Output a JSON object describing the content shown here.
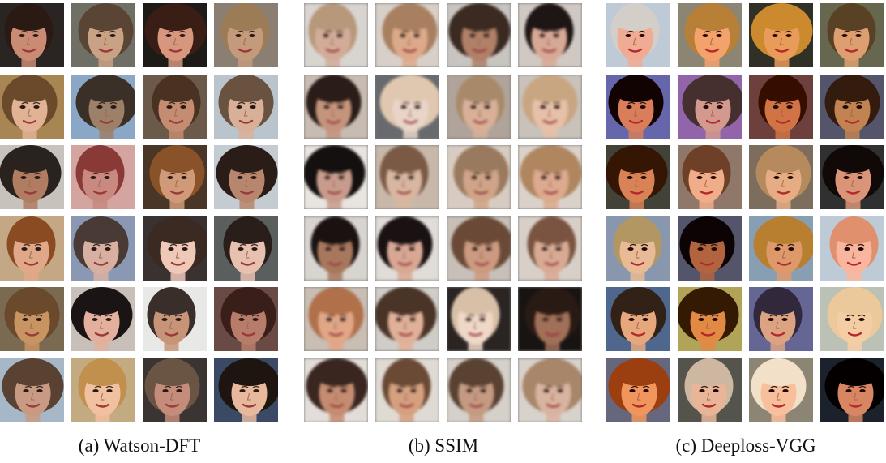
{
  "panels": [
    {
      "id": "watson-dft",
      "caption": "(a) Watson-DFT",
      "style": "sharp",
      "rows": 6,
      "cols": 4,
      "tiles": [
        {
          "bg": "#2a2422",
          "skin": "#c98b74",
          "hair": "#2b1a14"
        },
        {
          "bg": "#6f6f66",
          "skin": "#c9a184",
          "hair": "#5a4434"
        },
        {
          "bg": "#1e1a18",
          "skin": "#d6977e",
          "hair": "#3a1e16"
        },
        {
          "bg": "#8b7f74",
          "skin": "#c49a7c",
          "hair": "#9c7c56"
        },
        {
          "bg": "#a88654",
          "skin": "#e2b295",
          "hair": "#6b4a2c"
        },
        {
          "bg": "#8aa8c6",
          "skin": "#9c8068",
          "hair": "#3a3028"
        },
        {
          "bg": "#6b5a4a",
          "skin": "#c48c70",
          "hair": "#4a3222"
        },
        {
          "bg": "#b9c4cc",
          "skin": "#d8b098",
          "hair": "#6a5240"
        },
        {
          "bg": "#c8c2bc",
          "skin": "#b07c62",
          "hair": "#2a221e"
        },
        {
          "bg": "#d4a4a0",
          "skin": "#c88a80",
          "hair": "#8a3a36"
        },
        {
          "bg": "#4a3626",
          "skin": "#d09a78",
          "hair": "#8a5228"
        },
        {
          "bg": "#c4ccd2",
          "skin": "#b8866c",
          "hair": "#2a1c16"
        },
        {
          "bg": "#c4a886",
          "skin": "#e0a888",
          "hair": "#8a4a22"
        },
        {
          "bg": "#8a98b4",
          "skin": "#d8b0a2",
          "hair": "#4a3a36"
        },
        {
          "bg": "#3a3230",
          "skin": "#f0c8b8",
          "hair": "#3a2a22"
        },
        {
          "bg": "#5a5e5c",
          "skin": "#e8c0b0",
          "hair": "#2a1e1a"
        },
        {
          "bg": "#7a6a52",
          "skin": "#c89462",
          "hair": "#6a4a2a"
        },
        {
          "bg": "#c8c0b8",
          "skin": "#e2b09c",
          "hair": "#1a1414"
        },
        {
          "bg": "#e8e8e6",
          "skin": "#c89478",
          "hair": "#3a2e2a"
        },
        {
          "bg": "#6a4a44",
          "skin": "#b87c6a",
          "hair": "#3a1e1a"
        },
        {
          "bg": "#a6b8c8",
          "skin": "#c89a84",
          "hair": "#5a4232"
        },
        {
          "bg": "#c4aa80",
          "skin": "#f0c0a0",
          "hair": "#c0904c"
        },
        {
          "bg": "#3a3432",
          "skin": "#c48c7a",
          "hair": "#6a5444"
        },
        {
          "bg": "#3a4a64",
          "skin": "#e8b89c",
          "hair": "#1e1410"
        }
      ]
    },
    {
      "id": "ssim",
      "caption": "(b) SSIM",
      "style": "blurred",
      "rows": 6,
      "cols": 4,
      "tiles": [
        {
          "bg": "#d8d4d0",
          "skin": "#d2ac98",
          "hair": "#b8987a"
        },
        {
          "bg": "#d8d0c8",
          "skin": "#dcaa8a",
          "hair": "#a88060"
        },
        {
          "bg": "#c8c4c0",
          "skin": "#b08068",
          "hair": "#3a2a22"
        },
        {
          "bg": "#d0c8c2",
          "skin": "#d8a896",
          "hair": "#1e1614"
        },
        {
          "bg": "#c8bcb2",
          "skin": "#c4947c",
          "hair": "#2a1c18"
        },
        {
          "bg": "#686a6e",
          "skin": "#e8d4c8",
          "hair": "#e0c8b0"
        },
        {
          "bg": "#b0a49a",
          "skin": "#d8b098",
          "hair": "#a88a6a"
        },
        {
          "bg": "#c8c2ba",
          "skin": "#e6c0a8",
          "hair": "#c8a682"
        },
        {
          "bg": "#e8e4e0",
          "skin": "#c89c8c",
          "hair": "#141010"
        },
        {
          "bg": "#c8b8aa",
          "skin": "#d8b6a0",
          "hair": "#7a5a44"
        },
        {
          "bg": "#d8ccc2",
          "skin": "#d0a488",
          "hair": "#9a7a5e"
        },
        {
          "bg": "#dad2ca",
          "skin": "#dcaa8e",
          "hair": "#b08660"
        },
        {
          "bg": "#d8d4d0",
          "skin": "#a8785e",
          "hair": "#1a1210"
        },
        {
          "bg": "#e0dcd8",
          "skin": "#d8a894",
          "hair": "#1a1212"
        },
        {
          "bg": "#c8c0b8",
          "skin": "#cc9a80",
          "hair": "#6a4a36"
        },
        {
          "bg": "#d8d0c8",
          "skin": "#d8aa94",
          "hair": "#7a5440"
        },
        {
          "bg": "#c8beb4",
          "skin": "#e0a686",
          "hair": "#b0704a"
        },
        {
          "bg": "#d0ccc8",
          "skin": "#e0b098",
          "hair": "#4a3428"
        },
        {
          "bg": "#2a2422",
          "skin": "#f0d8c8",
          "hair": "#d8c0a8"
        },
        {
          "bg": "#181412",
          "skin": "#a07058",
          "hair": "#2a1a14"
        },
        {
          "bg": "#e2ddd8",
          "skin": "#c48c70",
          "hair": "#3a2620"
        },
        {
          "bg": "#e0dad4",
          "skin": "#d4a080",
          "hair": "#6a4a34"
        },
        {
          "bg": "#d6d0ca",
          "skin": "#c49a82",
          "hair": "#5a4232"
        },
        {
          "bg": "#d8d2cc",
          "skin": "#d8b4a0",
          "hair": "#a8866a"
        }
      ]
    },
    {
      "id": "deeploss-vgg",
      "caption": "(c) Deeploss-VGG",
      "style": "noisy",
      "rows": 6,
      "cols": 4,
      "tiles": [
        {
          "bg": "#b8c0c8",
          "skin": "#d8a898",
          "hair": "#c8c4c0"
        },
        {
          "bg": "#8a8478",
          "skin": "#d8a07a",
          "hair": "#a8804e"
        },
        {
          "bg": "#3a3a34",
          "skin": "#d09a6c",
          "hair": "#b88a4a"
        },
        {
          "bg": "#6a6a5a",
          "skin": "#c89c7c",
          "hair": "#5a4a36"
        },
        {
          "bg": "#6a6a9a",
          "skin": "#c08068",
          "hair": "#1e1414"
        },
        {
          "bg": "#8a6a9a",
          "skin": "#c09890",
          "hair": "#4a3a3a"
        },
        {
          "bg": "#6a4a48",
          "skin": "#b87858",
          "hair": "#3a1e14"
        },
        {
          "bg": "#5a5a6a",
          "skin": "#b08462",
          "hair": "#3a2a20"
        },
        {
          "bg": "#4a4a44",
          "skin": "#c08466",
          "hair": "#3a2418"
        },
        {
          "bg": "#8a7a70",
          "skin": "#d8a890",
          "hair": "#6a4a38"
        },
        {
          "bg": "#7a7064",
          "skin": "#d0a88c",
          "hair": "#a88a6a"
        },
        {
          "bg": "#3a3a3a",
          "skin": "#c49480",
          "hair": "#1e1818"
        },
        {
          "bg": "#8a94a4",
          "skin": "#d4b49a",
          "hair": "#a89470"
        },
        {
          "bg": "#5a5a6a",
          "skin": "#a06a50",
          "hair": "#1a1414"
        },
        {
          "bg": "#8a9aa8",
          "skin": "#c89878",
          "hair": "#a8804a"
        },
        {
          "bg": "#b8c0c8",
          "skin": "#e0b0a0",
          "hair": "#c89078"
        },
        {
          "bg": "#5a6a84",
          "skin": "#d0a486",
          "hair": "#3a2e26"
        },
        {
          "bg": "#a89e6a",
          "skin": "#c88a5a",
          "hair": "#3a2818"
        },
        {
          "bg": "#6a6a8a",
          "skin": "#c8a08a",
          "hair": "#3a3442"
        },
        {
          "bg": "#b4b8b0",
          "skin": "#e0c4a8",
          "hair": "#d8c0a0"
        },
        {
          "bg": "#6a6a7a",
          "skin": "#d4966e",
          "hair": "#8a4a2a"
        },
        {
          "bg": "#5a5a54",
          "skin": "#d4b09c",
          "hair": "#c0b0a0"
        },
        {
          "bg": "#8a8478",
          "skin": "#e0b8a0",
          "hair": "#e0d4c4"
        },
        {
          "bg": "#2a2e34",
          "skin": "#c08870",
          "hair": "#141010"
        }
      ]
    }
  ]
}
